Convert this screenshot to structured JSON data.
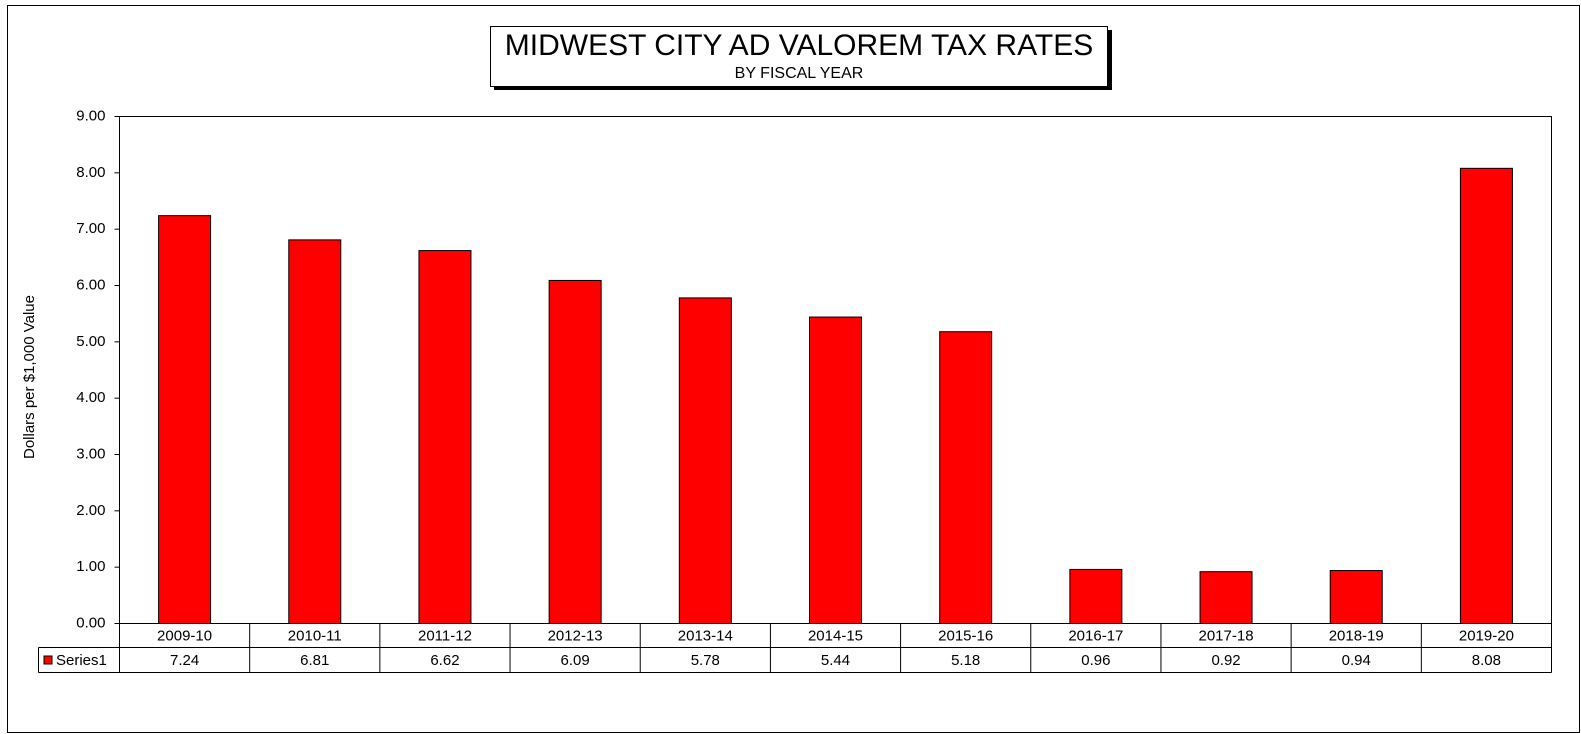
{
  "chart_data": {
    "type": "bar",
    "title": "MIDWEST CITY AD VALOREM TAX RATES",
    "subtitle": "BY FISCAL YEAR",
    "y_label": "Dollars per $1,000 Value",
    "categories": [
      "2009-10",
      "2010-11",
      "2011-12",
      "2012-13",
      "2013-14",
      "2014-15",
      "2015-16",
      "2016-17",
      "2017-18",
      "2018-19",
      "2019-20"
    ],
    "series": [
      {
        "name": "Series1",
        "color": "#ff0000",
        "values": [
          7.24,
          6.81,
          6.62,
          6.09,
          5.78,
          5.44,
          5.18,
          0.96,
          0.92,
          0.94,
          8.08
        ]
      }
    ],
    "ylim": [
      0,
      9
    ],
    "yticks": [
      {
        "value": 0,
        "label": "0.00"
      },
      {
        "value": 1,
        "label": "1.00"
      },
      {
        "value": 2,
        "label": "2.00"
      },
      {
        "value": 3,
        "label": "3.00"
      },
      {
        "value": 4,
        "label": "4.00"
      },
      {
        "value": 5,
        "label": "5.00"
      },
      {
        "value": 6,
        "label": "6.00"
      },
      {
        "value": 7,
        "label": "7.00"
      },
      {
        "value": 8,
        "label": "8.00"
      },
      {
        "value": 9,
        "label": "9.00"
      }
    ],
    "data_table": true
  }
}
